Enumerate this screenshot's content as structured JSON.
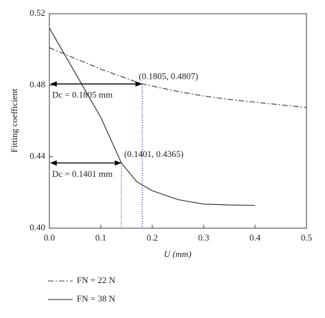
{
  "chart_data": {
    "type": "line",
    "xlabel": "U (mm)",
    "ylabel": "Fitting coefficient",
    "xlim": [
      0,
      0.5
    ],
    "ylim": [
      0.4,
      0.52
    ],
    "xticks": [
      {
        "value": 0,
        "label": "0.0"
      },
      0.1,
      0.2,
      0.3,
      0.4,
      0.5
    ],
    "yticks": [
      {
        "value": 0.4,
        "label": "0.40"
      },
      0.44,
      0.48,
      0.52
    ],
    "series": [
      {
        "name": "FN = 22 N",
        "color": "#333333",
        "dash": "dashdot",
        "x": [
          0,
          0.05,
          0.1,
          0.15,
          0.1805,
          0.25,
          0.3,
          0.35,
          0.4,
          0.45,
          0.5
        ],
        "values": [
          0.501,
          0.495,
          0.489,
          0.4838,
          0.4807,
          0.4765,
          0.474,
          0.472,
          0.4705,
          0.469,
          0.4675
        ]
      },
      {
        "name": "FN = 38 N",
        "color": "#222222",
        "dash": "solid",
        "x": [
          0,
          0.02,
          0.05,
          0.08,
          0.1,
          0.1401,
          0.17,
          0.2,
          0.25,
          0.3,
          0.35,
          0.4
        ],
        "values": [
          0.512,
          0.502,
          0.487,
          0.472,
          0.462,
          0.4365,
          0.426,
          0.421,
          0.416,
          0.4135,
          0.413,
          0.4128
        ]
      }
    ],
    "annotations": [
      {
        "point_label": "(0.1805, 0.4807)",
        "x": 0.1805,
        "y": 0.4807,
        "text": "Dc = 0.1805 mm"
      },
      {
        "point_label": "(0.1401, 0.4365)",
        "x": 0.1401,
        "y": 0.4365,
        "text": "Dc = 0.1401 mm"
      }
    ],
    "marker_color": "#2a2aa8"
  }
}
